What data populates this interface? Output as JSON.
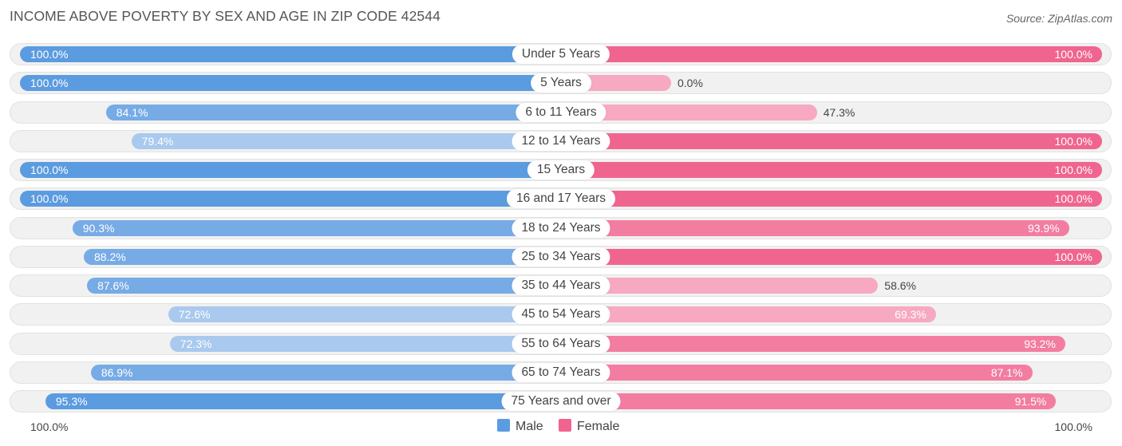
{
  "title": "INCOME ABOVE POVERTY BY SEX AND AGE IN ZIP CODE 42544",
  "source": "Source: ZipAtlas.com",
  "colors": {
    "male_full": "#5b9be0",
    "male_light": "#a9c9ee",
    "female_full": "#f0658f",
    "female_light": "#f7a9c1"
  },
  "axis": {
    "left_label": "100.0%",
    "right_label": "100.0%"
  },
  "legend": {
    "male": "Male",
    "female": "Female"
  },
  "chart_data": {
    "type": "bar",
    "orientation": "horizontal-diverging",
    "categories": [
      "Under 5 Years",
      "5 Years",
      "6 to 11 Years",
      "12 to 14 Years",
      "15 Years",
      "16 and 17 Years",
      "18 to 24 Years",
      "25 to 34 Years",
      "35 to 44 Years",
      "45 to 54 Years",
      "55 to 64 Years",
      "65 to 74 Years",
      "75 Years and over"
    ],
    "series": [
      {
        "name": "Male",
        "values": [
          100.0,
          100.0,
          84.1,
          79.4,
          100.0,
          100.0,
          90.3,
          88.2,
          87.6,
          72.6,
          72.3,
          86.9,
          95.3
        ],
        "labels": [
          "100.0%",
          "100.0%",
          "84.1%",
          "79.4%",
          "100.0%",
          "100.0%",
          "90.3%",
          "88.2%",
          "87.6%",
          "72.6%",
          "72.3%",
          "86.9%",
          "95.3%"
        ]
      },
      {
        "name": "Female",
        "values": [
          100.0,
          0.0,
          47.3,
          100.0,
          100.0,
          100.0,
          93.9,
          100.0,
          58.6,
          69.3,
          93.2,
          87.1,
          91.5
        ],
        "labels": [
          "100.0%",
          "0.0%",
          "47.3%",
          "100.0%",
          "100.0%",
          "100.0%",
          "93.9%",
          "100.0%",
          "58.6%",
          "69.3%",
          "93.2%",
          "87.1%",
          "91.5%"
        ]
      }
    ],
    "xlim": [
      -100,
      100
    ],
    "legend_position": "bottom-center"
  }
}
